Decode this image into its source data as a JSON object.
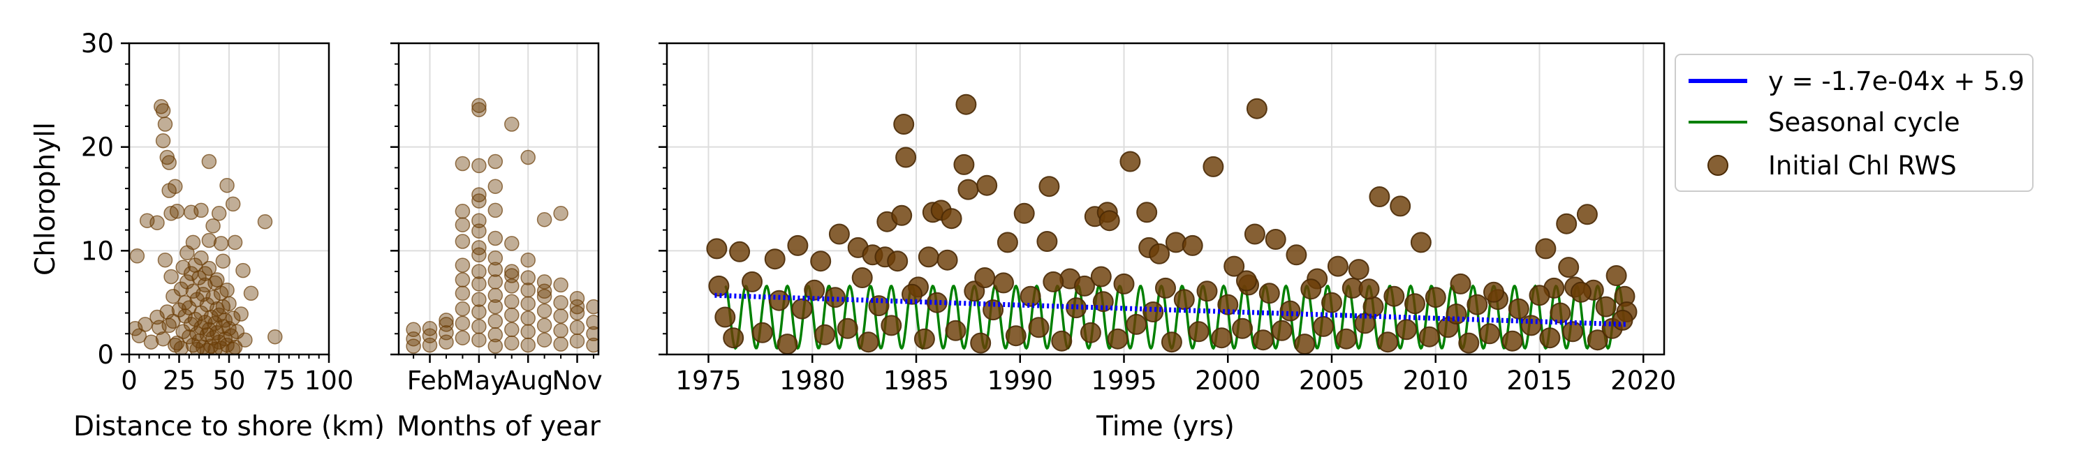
{
  "chart_data": [
    {
      "id": "distance",
      "type": "scatter",
      "xlabel": "Distance to shore (km)",
      "ylabel": "Chlorophyll",
      "xlim": [
        0,
        100
      ],
      "ylim": [
        0,
        30
      ],
      "xticks": [
        0,
        25,
        50,
        75,
        100
      ],
      "xtick_labels": [
        "0",
        "25",
        "50",
        "75",
        "100"
      ],
      "yticks": [
        0,
        10,
        20,
        30
      ],
      "ytick_labels": [
        "0",
        "10",
        "20",
        "30"
      ],
      "grid": true,
      "point_color": "#6b3d07",
      "points": [
        [
          16,
          23.9
        ],
        [
          17,
          23.5
        ],
        [
          18,
          22.2
        ],
        [
          17,
          20.6
        ],
        [
          19,
          19.0
        ],
        [
          20,
          18.5
        ],
        [
          40,
          18.6
        ],
        [
          23,
          16.2
        ],
        [
          49,
          16.3
        ],
        [
          20,
          15.8
        ],
        [
          21,
          13.6
        ],
        [
          24,
          13.8
        ],
        [
          31,
          13.7
        ],
        [
          36,
          13.9
        ],
        [
          45,
          13.6
        ],
        [
          52,
          14.5
        ],
        [
          9,
          12.9
        ],
        [
          14,
          12.7
        ],
        [
          42,
          12.4
        ],
        [
          68,
          12.8
        ],
        [
          40,
          11.0
        ],
        [
          32,
          10.8
        ],
        [
          46,
          10.7
        ],
        [
          53,
          10.8
        ],
        [
          4,
          9.5
        ],
        [
          18,
          9.1
        ],
        [
          27,
          8.4
        ],
        [
          33,
          8.6
        ],
        [
          21,
          7.5
        ],
        [
          38,
          7.8
        ],
        [
          57,
          8.1
        ],
        [
          61,
          5.9
        ],
        [
          8,
          2.9
        ],
        [
          3,
          2.5
        ],
        [
          5,
          1.8
        ],
        [
          11,
          1.2
        ],
        [
          73,
          1.7
        ],
        [
          14,
          3.6
        ],
        [
          15,
          2.6
        ],
        [
          17,
          1.5
        ],
        [
          19,
          4.1
        ],
        [
          20,
          2.8
        ],
        [
          22,
          3.2
        ],
        [
          22,
          5.6
        ],
        [
          24,
          1.1
        ],
        [
          25,
          4.3
        ],
        [
          26,
          6.3
        ],
        [
          27,
          2.2
        ],
        [
          28,
          3.7
        ],
        [
          28,
          5.0
        ],
        [
          29,
          7.0
        ],
        [
          30,
          1.7
        ],
        [
          30,
          4.5
        ],
        [
          31,
          2.9
        ],
        [
          32,
          6.1
        ],
        [
          32,
          0.9
        ],
        [
          33,
          3.4
        ],
        [
          34,
          5.3
        ],
        [
          34,
          2.0
        ],
        [
          35,
          7.4
        ],
        [
          35,
          1.3
        ],
        [
          36,
          4.0
        ],
        [
          36,
          2.6
        ],
        [
          37,
          5.8
        ],
        [
          37,
          0.7
        ],
        [
          38,
          3.1
        ],
        [
          38,
          6.7
        ],
        [
          39,
          1.9
        ],
        [
          39,
          4.8
        ],
        [
          40,
          2.4
        ],
        [
          40,
          8.3
        ],
        [
          41,
          3.6
        ],
        [
          41,
          0.8
        ],
        [
          42,
          5.5
        ],
        [
          42,
          1.6
        ],
        [
          43,
          3.0
        ],
        [
          43,
          6.9
        ],
        [
          44,
          2.1
        ],
        [
          44,
          4.4
        ],
        [
          45,
          1.2
        ],
        [
          45,
          3.8
        ],
        [
          46,
          5.9
        ],
        [
          46,
          0.6
        ],
        [
          47,
          2.7
        ],
        [
          47,
          4.6
        ],
        [
          48,
          1.5
        ],
        [
          48,
          3.3
        ],
        [
          49,
          6.2
        ],
        [
          49,
          0.9
        ],
        [
          50,
          2.5
        ],
        [
          50,
          4.9
        ],
        [
          51,
          1.8
        ],
        [
          52,
          3.5
        ],
        [
          53,
          0.7
        ],
        [
          54,
          2.2
        ],
        [
          56,
          3.9
        ],
        [
          58,
          1.4
        ],
        [
          26,
          0.6
        ],
        [
          31,
          7.8
        ],
        [
          44,
          7.2
        ],
        [
          36,
          9.3
        ],
        [
          29,
          9.8
        ],
        [
          47,
          9.0
        ],
        [
          23,
          0.9
        ],
        [
          34,
          0.5
        ],
        [
          39,
          0.4
        ],
        [
          43,
          0.5
        ],
        [
          52,
          0.5
        ]
      ]
    },
    {
      "id": "months",
      "type": "scatter",
      "xlabel": "Months of year",
      "xlim": [
        0.1,
        12.3
      ],
      "ylim": [
        0,
        30
      ],
      "xticks": [
        2,
        5,
        8,
        11
      ],
      "xtick_labels": [
        "Feb",
        "May",
        "Aug",
        "Nov"
      ],
      "grid": true,
      "point_color": "#6b3d07",
      "points": [
        [
          5,
          24.0
        ],
        [
          5,
          23.6
        ],
        [
          7,
          22.2
        ],
        [
          4,
          18.4
        ],
        [
          5,
          18.2
        ],
        [
          6,
          18.6
        ],
        [
          8,
          19.0
        ],
        [
          6,
          16.2
        ],
        [
          5,
          15.4
        ],
        [
          5,
          14.8
        ],
        [
          4,
          13.8
        ],
        [
          6,
          13.9
        ],
        [
          9,
          13.0
        ],
        [
          10,
          13.6
        ],
        [
          5,
          12.9
        ],
        [
          4,
          12.5
        ],
        [
          5,
          11.9
        ],
        [
          6,
          11.2
        ],
        [
          4,
          10.9
        ],
        [
          5,
          10.3
        ],
        [
          7,
          10.7
        ],
        [
          8,
          9.1
        ],
        [
          5,
          9.6
        ],
        [
          6,
          9.3
        ],
        [
          4,
          8.6
        ],
        [
          7,
          8.0
        ],
        [
          6,
          8.2
        ],
        [
          1,
          2.4
        ],
        [
          1,
          1.5
        ],
        [
          1,
          0.8
        ],
        [
          2,
          2.5
        ],
        [
          2,
          1.8
        ],
        [
          2,
          0.9
        ],
        [
          3,
          3.3
        ],
        [
          3,
          2.1
        ],
        [
          3,
          1.2
        ],
        [
          4,
          7.2
        ],
        [
          4,
          5.9
        ],
        [
          4,
          4.4
        ],
        [
          4,
          3.0
        ],
        [
          4,
          1.6
        ],
        [
          5,
          8.0
        ],
        [
          5,
          6.8
        ],
        [
          5,
          5.3
        ],
        [
          5,
          4.1
        ],
        [
          5,
          2.7
        ],
        [
          5,
          1.4
        ],
        [
          6,
          7.0
        ],
        [
          6,
          5.7
        ],
        [
          6,
          4.6
        ],
        [
          6,
          3.2
        ],
        [
          6,
          1.9
        ],
        [
          6,
          0.8
        ],
        [
          7,
          6.6
        ],
        [
          7,
          5.1
        ],
        [
          7,
          3.8
        ],
        [
          7,
          2.4
        ],
        [
          7,
          1.1
        ],
        [
          8,
          6.2
        ],
        [
          8,
          4.9
        ],
        [
          8,
          3.5
        ],
        [
          8,
          2.2
        ],
        [
          8,
          0.9
        ],
        [
          9,
          7.0
        ],
        [
          9,
          5.6
        ],
        [
          9,
          4.2
        ],
        [
          9,
          2.8
        ],
        [
          9,
          1.4
        ],
        [
          10,
          6.7
        ],
        [
          10,
          5.0
        ],
        [
          10,
          3.7
        ],
        [
          10,
          2.3
        ],
        [
          10,
          1.0
        ],
        [
          11,
          5.4
        ],
        [
          11,
          4.0
        ],
        [
          11,
          2.6
        ],
        [
          11,
          1.3
        ],
        [
          12,
          4.6
        ],
        [
          12,
          3.1
        ],
        [
          12,
          2.0
        ],
        [
          12,
          0.9
        ],
        [
          9,
          6.1
        ],
        [
          8,
          7.4
        ],
        [
          7,
          7.6
        ],
        [
          3,
          2.9
        ],
        [
          11,
          4.6
        ]
      ]
    },
    {
      "id": "time",
      "type": "scatter",
      "xlabel": "Time (yrs)",
      "xlim": [
        1973,
        2021
      ],
      "ylim": [
        0,
        30
      ],
      "xticks": [
        1975,
        1980,
        1985,
        1990,
        1995,
        2000,
        2005,
        2010,
        2015,
        2020
      ],
      "xtick_labels": [
        "1975",
        "1980",
        "1985",
        "1990",
        "1995",
        "2000",
        "2005",
        "2010",
        "2015",
        "2020"
      ],
      "grid": true,
      "point_color": "#6b3d07",
      "trend": {
        "label": "y = -1.7e-04x + 5.9",
        "color": "#0000ff",
        "x": [
          1975.3,
          2019.2
        ],
        "y": [
          5.7,
          2.9
        ]
      },
      "seasonal": {
        "label": "Seasonal cycle",
        "color": "#008000",
        "x_start": 1975.8,
        "x_end": 2019.1,
        "mean": 3.6,
        "amplitude": 3.0
      },
      "scatter_label": "Initial Chl RWS",
      "legend_location": "upper right, outside plot",
      "points": [
        [
          1975.4,
          10.2
        ],
        [
          1976.5,
          9.9
        ],
        [
          1978.2,
          9.2
        ],
        [
          1979.3,
          10.5
        ],
        [
          1980.4,
          9.0
        ],
        [
          1981.3,
          11.6
        ],
        [
          1982.2,
          10.3
        ],
        [
          1982.9,
          9.6
        ],
        [
          1983.6,
          12.8
        ],
        [
          1983.5,
          9.4
        ],
        [
          1984.1,
          9.0
        ],
        [
          1984.3,
          13.4
        ],
        [
          1984.4,
          22.2
        ],
        [
          1984.5,
          19.0
        ],
        [
          1985.6,
          9.4
        ],
        [
          1985.8,
          13.7
        ],
        [
          1986.2,
          13.9
        ],
        [
          1986.5,
          9.1
        ],
        [
          1986.7,
          13.1
        ],
        [
          1987.3,
          18.3
        ],
        [
          1987.4,
          24.1
        ],
        [
          1987.5,
          15.9
        ],
        [
          1988.4,
          16.3
        ],
        [
          1989.4,
          10.8
        ],
        [
          1990.2,
          13.6
        ],
        [
          1991.3,
          10.9
        ],
        [
          1991.4,
          16.2
        ],
        [
          1992.4,
          7.3
        ],
        [
          1993.6,
          13.3
        ],
        [
          1994.2,
          13.7
        ],
        [
          1994.3,
          12.9
        ],
        [
          1995.3,
          18.6
        ],
        [
          1996.1,
          13.7
        ],
        [
          1996.2,
          10.3
        ],
        [
          1996.7,
          9.7
        ],
        [
          1997.5,
          10.8
        ],
        [
          1998.3,
          10.5
        ],
        [
          1999.3,
          18.1
        ],
        [
          2000.3,
          8.5
        ],
        [
          2001.3,
          11.6
        ],
        [
          2001.4,
          23.7
        ],
        [
          2002.3,
          11.1
        ],
        [
          2003.3,
          9.6
        ],
        [
          2004.3,
          7.3
        ],
        [
          2005.3,
          8.5
        ],
        [
          2006.3,
          8.2
        ],
        [
          2007.3,
          15.2
        ],
        [
          2008.3,
          14.3
        ],
        [
          2009.3,
          10.8
        ],
        [
          2011.2,
          6.8
        ],
        [
          2015.3,
          10.2
        ],
        [
          2016.3,
          12.6
        ],
        [
          2016.4,
          8.4
        ],
        [
          2017.3,
          13.5
        ],
        [
          2015.7,
          6.4
        ],
        [
          2016.7,
          6.5
        ],
        [
          2017.6,
          6.2
        ],
        [
          2018.7,
          7.6
        ],
        [
          2019.1,
          5.6
        ],
        [
          2019.2,
          4.1
        ],
        [
          1975.5,
          6.6
        ],
        [
          1975.8,
          3.6
        ],
        [
          1976.2,
          1.6
        ],
        [
          1977.1,
          7.0
        ],
        [
          1977.6,
          2.1
        ],
        [
          1978.4,
          5.2
        ],
        [
          1978.8,
          1.0
        ],
        [
          1979.5,
          4.4
        ],
        [
          1980.1,
          6.2
        ],
        [
          1980.6,
          1.9
        ],
        [
          1981.1,
          5.5
        ],
        [
          1981.7,
          2.5
        ],
        [
          1982.4,
          7.4
        ],
        [
          1982.7,
          1.2
        ],
        [
          1983.2,
          4.7
        ],
        [
          1983.8,
          2.8
        ],
        [
          1985.1,
          6.5
        ],
        [
          1985.4,
          1.5
        ],
        [
          1986.0,
          5.0
        ],
        [
          1986.9,
          2.3
        ],
        [
          1987.8,
          6.1
        ],
        [
          1988.1,
          1.1
        ],
        [
          1988.7,
          4.3
        ],
        [
          1989.2,
          6.9
        ],
        [
          1989.8,
          1.8
        ],
        [
          1990.5,
          5.6
        ],
        [
          1990.9,
          2.6
        ],
        [
          1991.6,
          7.0
        ],
        [
          1992.0,
          1.3
        ],
        [
          1992.7,
          4.5
        ],
        [
          1993.1,
          6.6
        ],
        [
          1993.4,
          2.1
        ],
        [
          1994.0,
          5.1
        ],
        [
          1994.7,
          1.5
        ],
        [
          1995.0,
          6.8
        ],
        [
          1995.6,
          2.9
        ],
        [
          1996.4,
          4.1
        ],
        [
          1997.0,
          6.4
        ],
        [
          1997.3,
          1.2
        ],
        [
          1997.9,
          5.3
        ],
        [
          1998.6,
          2.2
        ],
        [
          1999.0,
          6.1
        ],
        [
          1999.7,
          1.6
        ],
        [
          2000.0,
          4.8
        ],
        [
          2000.7,
          2.5
        ],
        [
          2001.0,
          6.7
        ],
        [
          2001.7,
          1.4
        ],
        [
          2002.0,
          5.9
        ],
        [
          2002.6,
          2.3
        ],
        [
          2003.0,
          4.2
        ],
        [
          2003.7,
          1.0
        ],
        [
          2004.0,
          6.3
        ],
        [
          2004.6,
          2.7
        ],
        [
          2005.0,
          5.0
        ],
        [
          2005.7,
          1.5
        ],
        [
          2006.0,
          6.4
        ],
        [
          2006.6,
          3.0
        ],
        [
          2007.0,
          4.6
        ],
        [
          2007.7,
          1.2
        ],
        [
          2008.0,
          5.6
        ],
        [
          2008.6,
          2.4
        ],
        [
          2009.0,
          4.9
        ],
        [
          2009.7,
          1.7
        ],
        [
          2010.0,
          5.5
        ],
        [
          2010.6,
          2.6
        ],
        [
          2011.0,
          3.9
        ],
        [
          2011.6,
          1.1
        ],
        [
          2012.0,
          4.8
        ],
        [
          2012.6,
          2.0
        ],
        [
          2013.0,
          5.3
        ],
        [
          2013.7,
          1.3
        ],
        [
          2014.0,
          4.4
        ],
        [
          2014.6,
          2.8
        ],
        [
          2015.0,
          5.7
        ],
        [
          2015.5,
          1.6
        ],
        [
          2016.0,
          4.0
        ],
        [
          2016.6,
          2.2
        ],
        [
          2017.0,
          6.0
        ],
        [
          2017.8,
          1.4
        ],
        [
          2018.2,
          4.6
        ],
        [
          2018.5,
          2.5
        ],
        [
          2019.0,
          3.3
        ],
        [
          1984.8,
          5.8
        ],
        [
          1988.3,
          7.4
        ],
        [
          1993.9,
          7.5
        ],
        [
          2000.9,
          7.1
        ],
        [
          2006.8,
          6.3
        ],
        [
          2012.8,
          6.0
        ]
      ]
    }
  ]
}
